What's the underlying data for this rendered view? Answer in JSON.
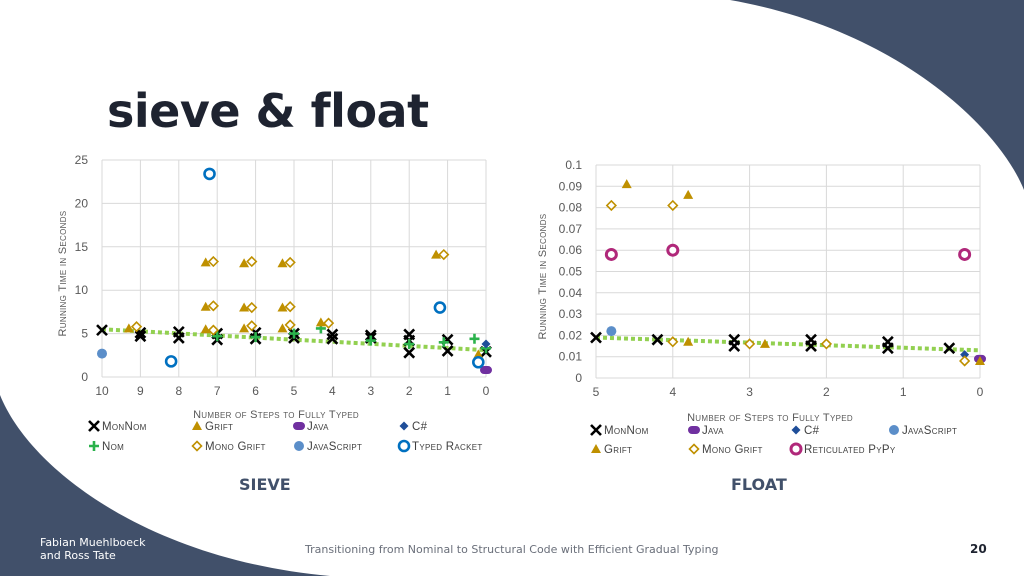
{
  "slide": {
    "title": "sieve & float",
    "footer_authors": "Fabian Muehlboeck\nand Ross Tate",
    "footer_title": "Transitioning from Nominal to Structural Code with Efficient Gradual Typing",
    "page_number": "20"
  },
  "colors": {
    "background": "#41506a",
    "slide": "#ffffff",
    "monnom": "#000000",
    "nom": "#2bb24c",
    "grift": "#bf9000",
    "mono_grift": "#bf9000",
    "java": "#7030a0",
    "javascript": "#5b8ec9",
    "csharp": "#1f4e99",
    "typed_racket": "#0070c0",
    "reticulated_pypy": "#b0287a",
    "trend": "#92d050"
  },
  "chart_data": [
    {
      "type": "scatter",
      "subtitle": "SIEVE",
      "xlabel": "Number of Steps to Fully Typed",
      "ylabel": "Running Time in Seconds",
      "xlim": [
        10,
        0
      ],
      "ylim": [
        0,
        25
      ],
      "x_ticks": [
        "10",
        "9",
        "8",
        "7",
        "6",
        "5",
        "4",
        "3",
        "2",
        "1",
        "0"
      ],
      "y_ticks": [
        "0",
        "5",
        "10",
        "15",
        "20",
        "25"
      ],
      "grid": true,
      "legend_position": "bottom",
      "series": [
        {
          "name": "MonNom",
          "marker": "x",
          "points": [
            [
              10,
              5.4
            ],
            [
              9,
              4.7
            ],
            [
              9,
              5.1
            ],
            [
              8,
              4.5
            ],
            [
              8,
              5.2
            ],
            [
              7,
              4.3
            ],
            [
              7,
              5.0
            ],
            [
              6,
              4.4
            ],
            [
              6,
              5.1
            ],
            [
              5,
              4.5
            ],
            [
              5,
              5.0
            ],
            [
              4,
              4.4
            ],
            [
              4,
              4.9
            ],
            [
              3,
              4.5
            ],
            [
              3,
              4.8
            ],
            [
              2,
              4.2
            ],
            [
              2,
              4.9
            ],
            [
              2,
              2.8
            ],
            [
              1,
              4.3
            ],
            [
              1,
              3.0
            ],
            [
              0,
              2.9
            ]
          ]
        },
        {
          "name": "Nom",
          "marker": "plus",
          "points": [
            [
              7,
              4.7
            ],
            [
              6,
              4.6
            ],
            [
              5,
              5.0
            ],
            [
              4.3,
              5.6
            ],
            [
              3,
              4.2
            ],
            [
              2,
              3.8
            ],
            [
              1.1,
              4.0
            ],
            [
              0.3,
              4.4
            ],
            [
              0,
              3.3
            ]
          ]
        },
        {
          "name": "Grift",
          "marker": "triangle",
          "points": [
            [
              9.3,
              5.6
            ],
            [
              7.3,
              13.2
            ],
            [
              7.3,
              8.1
            ],
            [
              7.3,
              5.5
            ],
            [
              6.3,
              13.1
            ],
            [
              6.3,
              8.0
            ],
            [
              6.3,
              5.6
            ],
            [
              5.3,
              13.1
            ],
            [
              5.3,
              8.0
            ],
            [
              5.3,
              5.6
            ],
            [
              4.3,
              6.3
            ],
            [
              1.3,
              14.1
            ],
            [
              0.2,
              2.6
            ]
          ]
        },
        {
          "name": "Mono Grift",
          "marker": "diamond",
          "points": [
            [
              9.1,
              5.8
            ],
            [
              7.1,
              13.3
            ],
            [
              7.1,
              8.2
            ],
            [
              7.1,
              5.4
            ],
            [
              6.1,
              13.3
            ],
            [
              6.1,
              8.0
            ],
            [
              6.1,
              5.9
            ],
            [
              5.1,
              13.2
            ],
            [
              5.1,
              8.1
            ],
            [
              5.1,
              6.0
            ],
            [
              4.1,
              6.2
            ],
            [
              1.1,
              14.1
            ]
          ]
        },
        {
          "name": "Java",
          "marker": "pill",
          "points": [
            [
              0,
              0.8
            ]
          ]
        },
        {
          "name": "JavaScript",
          "marker": "circle",
          "points": [
            [
              10,
              2.7
            ]
          ]
        },
        {
          "name": "C#",
          "marker": "small-diamond",
          "points": [
            [
              0,
              3.8
            ]
          ]
        },
        {
          "name": "Typed Racket",
          "marker": "ring",
          "points": [
            [
              7.2,
              23.4
            ],
            [
              8.2,
              1.8
            ],
            [
              1.2,
              8.0
            ],
            [
              0.2,
              1.7
            ]
          ]
        }
      ],
      "trend": {
        "x": [
          10,
          0
        ],
        "y": [
          5.5,
          3.1
        ]
      }
    },
    {
      "type": "scatter",
      "subtitle": "FLOAT",
      "xlabel": "Number of Steps to Fully Typed",
      "ylabel": "Running Time in Seconds",
      "xlim": [
        5,
        0
      ],
      "ylim": [
        0,
        0.1
      ],
      "x_ticks": [
        "5",
        "4",
        "3",
        "2",
        "1",
        "0"
      ],
      "y_ticks": [
        "0",
        "0.01",
        "0.02",
        "0.03",
        "0.04",
        "0.05",
        "0.06",
        "0.07",
        "0.08",
        "0.09",
        "0.1"
      ],
      "grid": true,
      "legend_position": "bottom",
      "series": [
        {
          "name": "MonNom",
          "marker": "x",
          "points": [
            [
              5,
              0.019
            ],
            [
              4.2,
              0.018
            ],
            [
              3.2,
              0.018
            ],
            [
              3.2,
              0.015
            ],
            [
              2.2,
              0.018
            ],
            [
              2.2,
              0.015
            ],
            [
              1.2,
              0.017
            ],
            [
              1.2,
              0.014
            ],
            [
              0.4,
              0.014
            ]
          ]
        },
        {
          "name": "Java",
          "marker": "pill",
          "points": [
            [
              0,
              0.009
            ]
          ]
        },
        {
          "name": "C#",
          "marker": "small-diamond",
          "points": [
            [
              0.2,
              0.011
            ]
          ]
        },
        {
          "name": "JavaScript",
          "marker": "circle",
          "points": [
            [
              4.8,
              0.022
            ]
          ]
        },
        {
          "name": "Grift",
          "marker": "triangle",
          "points": [
            [
              4.6,
              0.091
            ],
            [
              3.8,
              0.086
            ],
            [
              3.8,
              0.017
            ],
            [
              2.8,
              0.016
            ],
            [
              0,
              0.008
            ]
          ]
        },
        {
          "name": "Mono Grift",
          "marker": "diamond",
          "points": [
            [
              4.8,
              0.081
            ],
            [
              4,
              0.081
            ],
            [
              4,
              0.017
            ],
            [
              3,
              0.016
            ],
            [
              2,
              0.016
            ],
            [
              0.2,
              0.008
            ]
          ]
        },
        {
          "name": "Reticulated PyPy",
          "marker": "thick-ring",
          "points": [
            [
              4.8,
              0.058
            ],
            [
              4,
              0.06
            ],
            [
              0.2,
              0.058
            ]
          ]
        }
      ],
      "trend": {
        "x": [
          5,
          0
        ],
        "y": [
          0.019,
          0.013
        ]
      }
    }
  ]
}
